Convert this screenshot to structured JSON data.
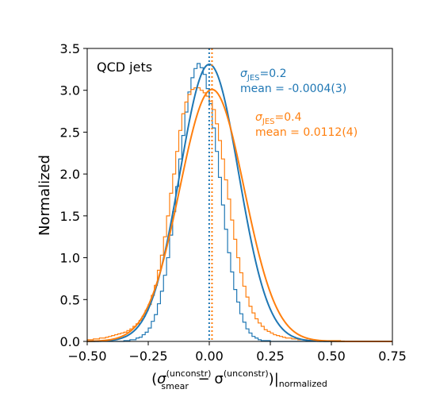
{
  "chart_data": {
    "type": "line",
    "title": "",
    "corner_label": "QCD jets",
    "ylabel": "Normalized",
    "xlabel": {
      "open": "(",
      "sigma": "σ",
      "sup1": "(unconstr)",
      "sub1": "smear",
      "minus": " − σ",
      "sup2": "(unconstr)",
      "close": ")|",
      "sub2": "normalized"
    },
    "xlim": [
      -0.5,
      0.75
    ],
    "ylim": [
      0.0,
      3.5
    ],
    "xticks": [
      -0.5,
      -0.25,
      0.0,
      0.25,
      0.5,
      0.75
    ],
    "xtick_labels": [
      "−0.50",
      "−0.25",
      "0.00",
      "0.25",
      "0.50",
      "0.75"
    ],
    "yticks": [
      0.0,
      0.5,
      1.0,
      1.5,
      2.0,
      2.5,
      3.0,
      3.5
    ],
    "ytick_labels": [
      "0.0",
      "0.5",
      "1.0",
      "1.5",
      "2.0",
      "2.5",
      "3.0",
      "3.5"
    ],
    "grid": false,
    "series": [
      {
        "color": "#1f77b4",
        "annotation": {
          "sigma": "σ",
          "sub": "JES",
          "value": "=0.2",
          "mean": "mean = -0.0004(3)"
        },
        "mean_line_x": -0.0004,
        "fit": {
          "mu": 0.0,
          "sigma": 0.1205,
          "amplitude": 3.31
        },
        "hist": {
          "bin_width": 0.0125,
          "bin_left_edges": [
            -0.5,
            -0.4875,
            -0.475,
            -0.4625,
            -0.45,
            -0.4375,
            -0.425,
            -0.4125,
            -0.4,
            -0.3875,
            -0.375,
            -0.3625,
            -0.35,
            -0.3375,
            -0.325,
            -0.3125,
            -0.3,
            -0.2875,
            -0.275,
            -0.2625,
            -0.25,
            -0.2375,
            -0.225,
            -0.2125,
            -0.2,
            -0.1875,
            -0.175,
            -0.1625,
            -0.15,
            -0.1375,
            -0.125,
            -0.1125,
            -0.1,
            -0.0875,
            -0.075,
            -0.0625,
            -0.05,
            -0.0375,
            -0.025,
            -0.0125,
            0.0,
            0.0125,
            0.025,
            0.0375,
            0.05,
            0.0625,
            0.075,
            0.0875,
            0.1,
            0.1125,
            0.125,
            0.1375,
            0.15,
            0.1625,
            0.175,
            0.1875,
            0.2,
            0.2125,
            0.225,
            0.2375,
            0.25,
            0.2625,
            0.275,
            0.2875,
            0.3,
            0.3125,
            0.325,
            0.3375,
            0.35,
            0.3625,
            0.375,
            0.3875,
            0.4,
            0.4125,
            0.425,
            0.4375,
            0.45,
            0.4625,
            0.475,
            0.4875,
            0.5,
            0.5125,
            0.525,
            0.5375,
            0.55,
            0.5625,
            0.575,
            0.5875,
            0.6,
            0.6125,
            0.625,
            0.6375,
            0.65,
            0.6625,
            0.675,
            0.6875,
            0.7,
            0.7125,
            0.725,
            0.7375
          ],
          "values": [
            0.0,
            0.0,
            0.0,
            0.0,
            0.0,
            0.0,
            0.0,
            0.0,
            0.0,
            0.0,
            0.0,
            0.0,
            0.01,
            0.01,
            0.02,
            0.02,
            0.04,
            0.05,
            0.08,
            0.11,
            0.16,
            0.24,
            0.32,
            0.45,
            0.6,
            0.79,
            1.0,
            1.27,
            1.55,
            1.85,
            2.18,
            2.46,
            2.74,
            2.98,
            3.15,
            3.26,
            3.32,
            3.27,
            3.19,
            3.02,
            2.84,
            2.55,
            2.27,
            1.96,
            1.63,
            1.34,
            1.06,
            0.83,
            0.62,
            0.47,
            0.33,
            0.23,
            0.15,
            0.1,
            0.06,
            0.04,
            0.02,
            0.01,
            0.01,
            0.01,
            0.0,
            0.0,
            0.0,
            0.0,
            0.0,
            0.0,
            0.0,
            0.0,
            0.0,
            0.0,
            0.0,
            0.0,
            0.0,
            0.0,
            0.0,
            0.0,
            0.0,
            0.0,
            0.0,
            0.0,
            0.0,
            0.0,
            0.0,
            0.0,
            0.0,
            0.0,
            0.0,
            0.0,
            0.0,
            0.0,
            0.0,
            0.0,
            0.0,
            0.0,
            0.0,
            0.0,
            0.0,
            0.0,
            0.0,
            0.0
          ]
        }
      },
      {
        "color": "#ff7f0e",
        "annotation": {
          "sigma": "σ",
          "sub": "JES",
          "value": "=0.4",
          "mean": "mean = 0.0112(4)"
        },
        "mean_line_x": 0.0112,
        "fit": {
          "mu": 0.011,
          "sigma": 0.132,
          "amplitude": 3.01
        },
        "hist": {
          "bin_width": 0.0125,
          "bin_left_edges": [
            -0.5,
            -0.4875,
            -0.475,
            -0.4625,
            -0.45,
            -0.4375,
            -0.425,
            -0.4125,
            -0.4,
            -0.3875,
            -0.375,
            -0.3625,
            -0.35,
            -0.3375,
            -0.325,
            -0.3125,
            -0.3,
            -0.2875,
            -0.275,
            -0.2625,
            -0.25,
            -0.2375,
            -0.225,
            -0.2125,
            -0.2,
            -0.1875,
            -0.175,
            -0.1625,
            -0.15,
            -0.1375,
            -0.125,
            -0.1125,
            -0.1,
            -0.0875,
            -0.075,
            -0.0625,
            -0.05,
            -0.0375,
            -0.025,
            -0.0125,
            0.0,
            0.0125,
            0.025,
            0.0375,
            0.05,
            0.0625,
            0.075,
            0.0875,
            0.1,
            0.1125,
            0.125,
            0.1375,
            0.15,
            0.1625,
            0.175,
            0.1875,
            0.2,
            0.2125,
            0.225,
            0.2375,
            0.25,
            0.2625,
            0.275,
            0.2875,
            0.3,
            0.3125,
            0.325,
            0.3375,
            0.35,
            0.3625,
            0.375,
            0.3875,
            0.4,
            0.4125,
            0.425,
            0.4375,
            0.45,
            0.4625,
            0.475,
            0.4875,
            0.5,
            0.5125,
            0.525,
            0.5375,
            0.55,
            0.5625,
            0.575,
            0.5875,
            0.6,
            0.6125,
            0.625,
            0.6375,
            0.65,
            0.6625,
            0.675,
            0.6875,
            0.7,
            0.7125,
            0.725,
            0.7375
          ],
          "values": [
            0.02,
            0.02,
            0.03,
            0.03,
            0.04,
            0.04,
            0.05,
            0.06,
            0.07,
            0.08,
            0.09,
            0.1,
            0.11,
            0.13,
            0.15,
            0.18,
            0.21,
            0.25,
            0.3,
            0.37,
            0.44,
            0.55,
            0.67,
            0.85,
            1.03,
            1.25,
            1.5,
            1.77,
            2.0,
            2.27,
            2.52,
            2.72,
            2.86,
            2.95,
            3.01,
            3.03,
            3.03,
            3.0,
            2.97,
            2.93,
            2.87,
            2.77,
            2.6,
            2.4,
            2.18,
            1.93,
            1.7,
            1.45,
            1.22,
            1.0,
            0.82,
            0.66,
            0.53,
            0.42,
            0.34,
            0.27,
            0.22,
            0.18,
            0.14,
            0.12,
            0.1,
            0.08,
            0.07,
            0.06,
            0.05,
            0.04,
            0.04,
            0.03,
            0.03,
            0.02,
            0.02,
            0.02,
            0.01,
            0.01,
            0.01,
            0.01,
            0.01,
            0.01,
            0.01,
            0.01,
            0.01,
            0.01,
            0.01,
            0.0,
            0.0,
            0.0,
            0.0,
            0.0,
            0.0,
            0.0,
            0.0,
            0.0,
            0.0,
            0.0,
            0.0,
            0.0,
            0.0,
            0.0,
            0.0,
            0.0
          ]
        }
      }
    ]
  }
}
